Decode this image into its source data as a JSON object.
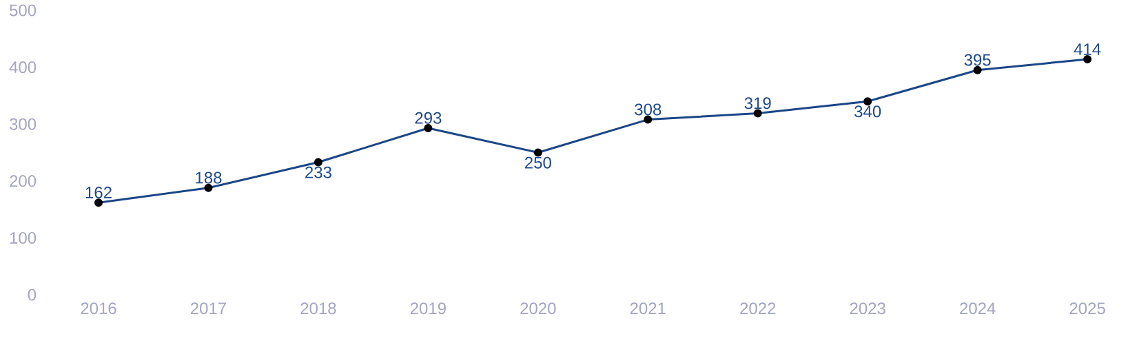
{
  "chart_data": {
    "type": "line",
    "categories": [
      "2016",
      "2017",
      "2018",
      "2019",
      "2020",
      "2021",
      "2022",
      "2023",
      "2024",
      "2025"
    ],
    "values": [
      162,
      188,
      233,
      293,
      250,
      308,
      319,
      340,
      395,
      414
    ],
    "color": "#1b4686",
    "marker": "circle",
    "line_style": "solid",
    "data_labels": true,
    "ylim": [
      0,
      500
    ],
    "yticks": [
      0,
      100,
      200,
      300,
      400,
      500
    ]
  }
}
